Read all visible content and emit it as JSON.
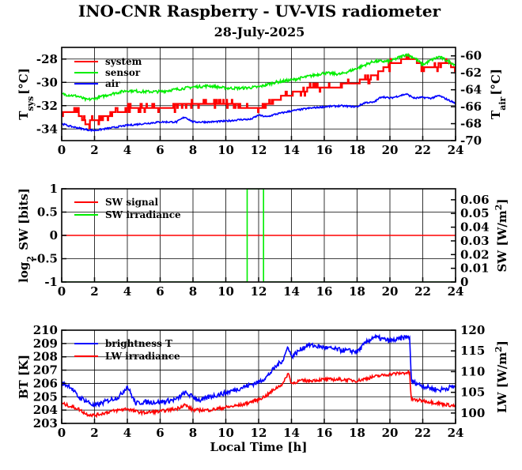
{
  "title": "INO-CNR Raspberry - UV-VIS radiometer",
  "subtitle": "28-July-2025",
  "colors": {
    "system": "#ff0000",
    "sensor": "#00ee00",
    "air": "#0000ff",
    "sw_signal": "#ff0000",
    "sw_irradiance": "#00ee00",
    "brightness": "#0000ff",
    "lw_irradiance": "#ff0000"
  },
  "chart_data": [
    {
      "type": "line",
      "xlim": [
        0,
        24
      ],
      "xticks": [
        "0",
        "2",
        "4",
        "6",
        "8",
        "10",
        "12",
        "14",
        "16",
        "18",
        "20",
        "22",
        "24"
      ],
      "ylabel_left": "T",
      "ylabel_left_sub": "sys",
      "ylabel_left_unit": "[°C]",
      "ylabel_right": "T",
      "ylabel_right_sub": "air",
      "ylabel_right_unit": "[°C]",
      "ylim_left": [
        -35,
        -27
      ],
      "ylim_right": [
        -70,
        -59
      ],
      "yticks_left": [
        "-34",
        "-32",
        "-30",
        "-28"
      ],
      "yticks_right": [
        "-70",
        "-68",
        "-66",
        "-64",
        "-62",
        "-60"
      ],
      "grid": true,
      "legend_position": "top-left",
      "series": [
        {
          "name": "system",
          "axis": "left",
          "x": [
            0,
            1,
            1.5,
            2,
            2.5,
            3,
            4,
            5,
            6,
            7,
            8,
            9,
            10,
            10.5,
            11,
            11.5,
            12,
            12.5,
            13,
            14,
            15,
            16,
            17,
            17.5,
            18,
            19,
            19.5,
            20,
            21,
            21.5,
            22,
            22.5,
            23,
            23.5,
            24
          ],
          "y": [
            -32.7,
            -32.7,
            -33.5,
            -33.3,
            -33,
            -32.7,
            -32.3,
            -32.3,
            -32.3,
            -32,
            -31.8,
            -32,
            -32,
            -31.7,
            -32.3,
            -32.3,
            -32.3,
            -32,
            -31.5,
            -31,
            -30.6,
            -30.3,
            -30.3,
            -30,
            -30,
            -29.5,
            -29,
            -28.5,
            -28,
            -28,
            -28.7,
            -28.7,
            -28.5,
            -28.2,
            -29
          ]
        },
        {
          "name": "sensor",
          "axis": "left",
          "x": [
            0,
            1,
            1.5,
            2,
            3,
            4,
            5,
            6,
            7,
            8,
            9,
            10,
            11,
            12,
            13,
            14,
            15,
            16,
            17,
            18,
            18.5,
            19,
            20,
            20.5,
            21,
            21.5,
            22,
            22.5,
            23,
            24
          ],
          "y": [
            -31,
            -31.2,
            -31.5,
            -31.4,
            -31,
            -30.7,
            -30.8,
            -30.8,
            -30.6,
            -30.4,
            -30.3,
            -30.5,
            -30.5,
            -30.4,
            -30,
            -29.8,
            -29.5,
            -29.2,
            -29.3,
            -28.8,
            -28.5,
            -28.2,
            -28.2,
            -27.9,
            -27.6,
            -27.9,
            -28.5,
            -28.1,
            -27.8,
            -28.5
          ]
        },
        {
          "name": "air",
          "axis": "right",
          "x": [
            0,
            0.5,
            1,
            1.5,
            2,
            3,
            4,
            5,
            6,
            7,
            7.5,
            8,
            9,
            10,
            11,
            11.5,
            12,
            12.5,
            13,
            14,
            15,
            16,
            17,
            18,
            18.5,
            19,
            19.5,
            20,
            21,
            21.5,
            22,
            22.5,
            23,
            24
          ],
          "y": [
            -68,
            -68.3,
            -68.5,
            -68.7,
            -68.8,
            -68.5,
            -68.2,
            -68,
            -67.8,
            -67.8,
            -67.2,
            -67.8,
            -67.8,
            -67.7,
            -67.5,
            -67.5,
            -67,
            -67.2,
            -66.9,
            -66.5,
            -66.2,
            -66,
            -65.9,
            -66,
            -65.5,
            -65.5,
            -64.8,
            -65,
            -64.5,
            -65,
            -64.9,
            -65,
            -64.7,
            -65.6
          ]
        }
      ]
    },
    {
      "type": "line",
      "xlim": [
        0,
        24
      ],
      "xticks": [
        "0",
        "2",
        "4",
        "6",
        "8",
        "10",
        "12",
        "14",
        "16",
        "18",
        "20",
        "22",
        "24"
      ],
      "ylabel_left": "log",
      "ylabel_left_sub": "2",
      "ylabel_left_unit": " SW [bits]",
      "ylabel_right": "SW [W/m",
      "ylabel_right_sup": "2",
      "ylabel_right_unit": "]",
      "ylim_left": [
        -1,
        1
      ],
      "ylim_right": [
        0,
        0.068
      ],
      "yticks_left": [
        "-1",
        "-0.5",
        "0",
        "0.5",
        "1"
      ],
      "yticks_right": [
        "0",
        "0.01",
        "0.02",
        "0.03",
        "0.04",
        "0.05",
        "0.06"
      ],
      "grid": true,
      "legend_position": "top-left",
      "series": [
        {
          "name": "SW signal",
          "axis": "left",
          "x": [
            0,
            24
          ],
          "y": [
            0,
            0
          ]
        },
        {
          "name": "SW irradiance",
          "axis": "left",
          "x": [
            0,
            11.3,
            11.3,
            12.3,
            12.3,
            24
          ],
          "y": [
            -1,
            -1,
            1,
            1,
            -1,
            -1
          ]
        }
      ]
    },
    {
      "type": "line",
      "xlim": [
        0,
        24
      ],
      "xticks": [
        "0",
        "2",
        "4",
        "6",
        "8",
        "10",
        "12",
        "14",
        "16",
        "18",
        "20",
        "22",
        "24"
      ],
      "xlabel": "Local Time [h]",
      "ylabel_left": "BT [K]",
      "ylabel_right": "LW [W/m",
      "ylabel_right_sup": "2",
      "ylabel_right_unit": "]",
      "ylim_left": [
        203,
        210
      ],
      "ylim_right": [
        97.5,
        120
      ],
      "yticks_left": [
        "203",
        "204",
        "205",
        "206",
        "207",
        "208",
        "209",
        "210"
      ],
      "yticks_right": [
        "100",
        "105",
        "110",
        "115",
        "120"
      ],
      "grid": true,
      "legend_position": "top-left",
      "series": [
        {
          "name": "brightness T",
          "axis": "left",
          "x": [
            0,
            0.5,
            1,
            1.5,
            2,
            3,
            3.5,
            4,
            4.5,
            5,
            6,
            7,
            7.5,
            8,
            8.5,
            9,
            10,
            11,
            12,
            12.5,
            13,
            13.5,
            13.8,
            14,
            14.5,
            15,
            16,
            17,
            18,
            18.5,
            19,
            20,
            20.5,
            21,
            21.2,
            21.3,
            22,
            23,
            24
          ],
          "y": [
            206,
            205.8,
            205,
            204.7,
            204.3,
            204.8,
            205,
            205.8,
            204.5,
            204.6,
            204.6,
            204.8,
            205.3,
            205,
            204.7,
            205,
            205.3,
            205.7,
            206.1,
            206.5,
            207.2,
            207.8,
            208.8,
            208,
            208.5,
            208.9,
            208.7,
            208.5,
            208.4,
            209,
            209.5,
            209.2,
            209.3,
            209.5,
            209.5,
            206.2,
            205.8,
            205.5,
            205.8
          ]
        },
        {
          "name": "LW irradiance",
          "axis": "left",
          "x": [
            0,
            0.5,
            1,
            1.5,
            2,
            3,
            4,
            4.5,
            5,
            6,
            7,
            7.5,
            8,
            8.5,
            9,
            10,
            11,
            12,
            12.5,
            13,
            13.5,
            13.8,
            14,
            14.5,
            15,
            16,
            17,
            18,
            19,
            20,
            21,
            21.2,
            21.3,
            22,
            23,
            24
          ],
          "y": [
            204.5,
            204.3,
            204.1,
            203.7,
            203.6,
            203.9,
            204.1,
            203.9,
            203.8,
            203.9,
            204.1,
            204.4,
            204,
            204,
            204,
            204.2,
            204.4,
            204.8,
            205.1,
            205.6,
            206,
            206.8,
            206,
            206.2,
            206.2,
            206.3,
            206.3,
            206.2,
            206.5,
            206.7,
            206.8,
            206.8,
            204.8,
            204.7,
            204.5,
            204.3
          ]
        }
      ]
    }
  ]
}
